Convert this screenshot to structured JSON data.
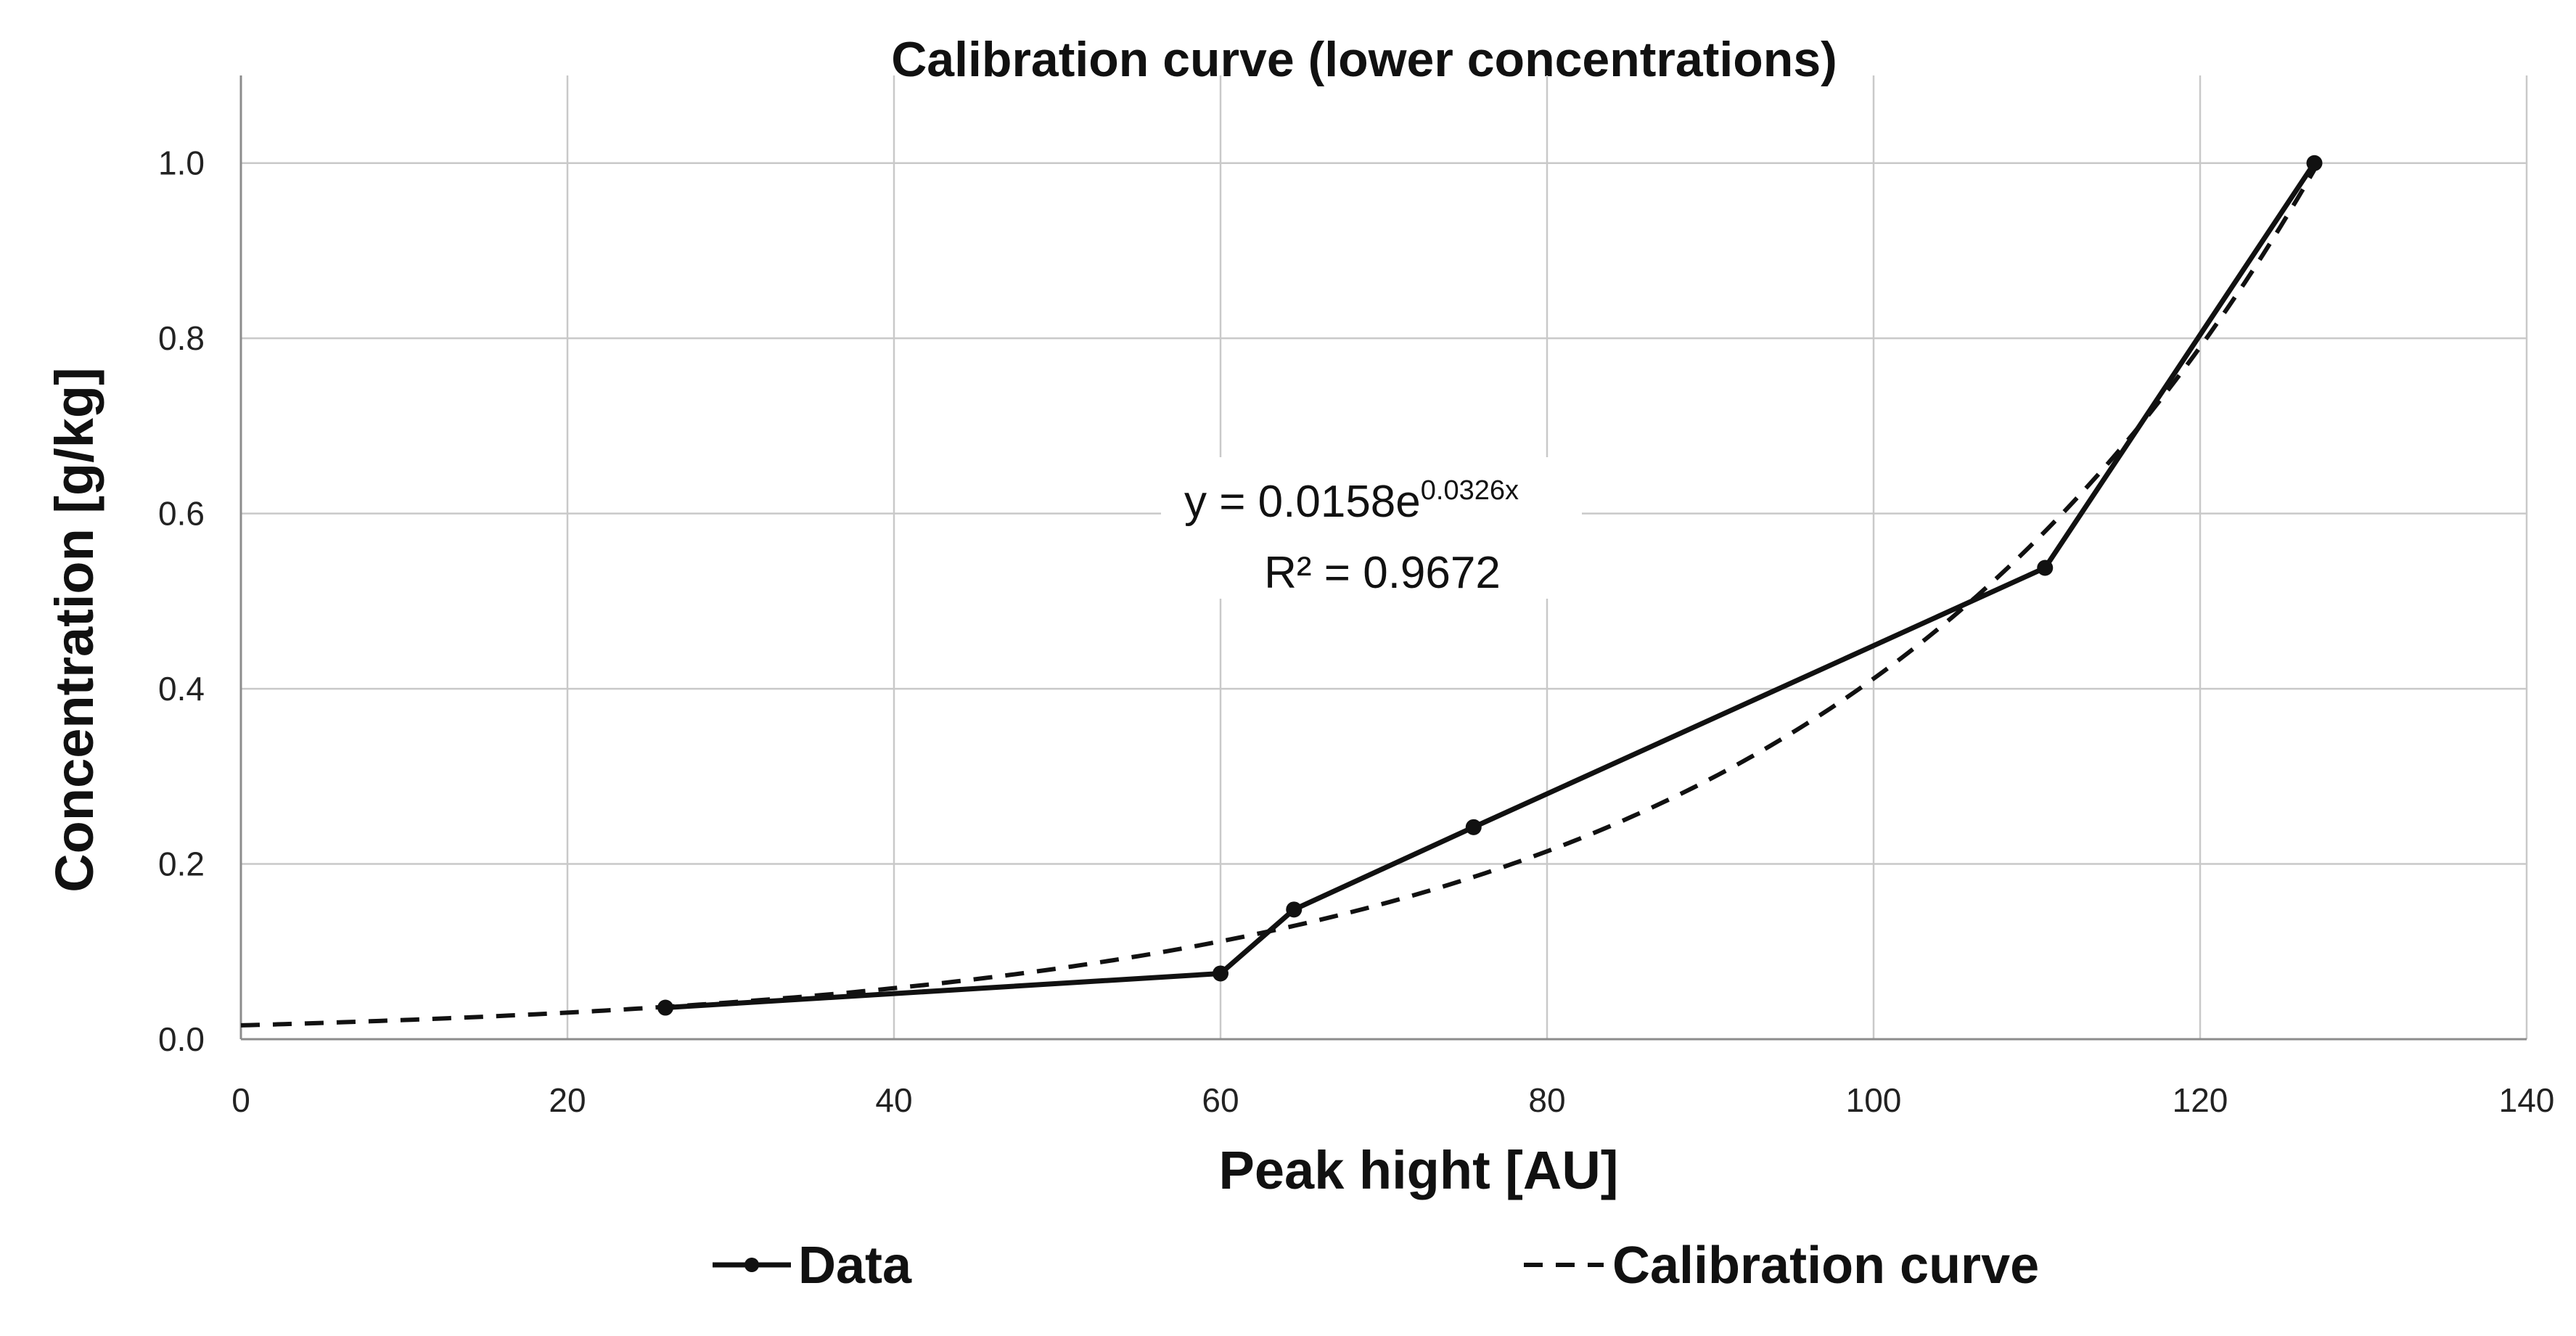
{
  "chart_data": {
    "type": "line",
    "title": "Calibration curve (lower concentrations)",
    "xlabel": "Peak hight [AU]",
    "ylabel": "Concentration [g/kg]",
    "xlim": [
      0,
      140
    ],
    "ylim": [
      0,
      1.1
    ],
    "x_ticks": [
      0,
      20,
      40,
      60,
      80,
      100,
      120,
      140
    ],
    "x_tick_labels": [
      "0",
      "20",
      "40",
      "60",
      "80",
      "100",
      "120",
      "140"
    ],
    "y_ticks": [
      0,
      0.2,
      0.4,
      0.6,
      0.8,
      1.0
    ],
    "y_tick_labels": [
      "0.0",
      "0.2",
      "0.4",
      "0.6",
      "0.8",
      "1.0"
    ],
    "grid": true,
    "legend_position": "bottom",
    "series": [
      {
        "name": "Data",
        "style": "solid-with-markers",
        "x": [
          26,
          60,
          64.5,
          75.5,
          110.5,
          127
        ],
        "y": [
          0.036,
          0.075,
          0.148,
          0.242,
          0.538,
          1.0
        ]
      },
      {
        "name": "Calibration curve",
        "style": "dashed",
        "equation": {
          "a": 0.0158,
          "b": 0.0326,
          "x_range": [
            0,
            127
          ]
        }
      }
    ],
    "annotation": {
      "equation_prefix": "y = 0.0158e",
      "equation_exponent": "0.0326x",
      "r_squared": "R² = 0.9672"
    }
  }
}
